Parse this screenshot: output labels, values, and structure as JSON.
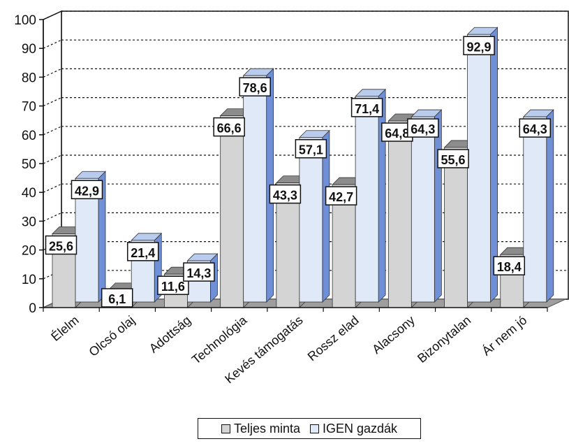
{
  "chart_data": {
    "type": "bar",
    "title": "",
    "xlabel": "",
    "ylabel": "",
    "ylim": [
      0,
      100
    ],
    "yticks": [
      0,
      10,
      20,
      30,
      40,
      50,
      60,
      70,
      80,
      90,
      100
    ],
    "grid": "dashed horizontal",
    "legend_position": "bottom-center",
    "categories": [
      "Élelm",
      "Olcsó olaj",
      "Adottság",
      "Technológia",
      "Kevés támogatás",
      "Rossz elad",
      "Alacsony",
      "Bizonytalan",
      "Ár nem jó"
    ],
    "series": [
      {
        "name": "Teljes minta",
        "values": [
          25.6,
          6.1,
          11.6,
          66.6,
          43.3,
          42.7,
          64.8,
          55.6,
          18.4
        ],
        "labels": [
          "25,6",
          "6,1",
          "11,6",
          "66,6",
          "43,3",
          "42,7",
          "64,8",
          "55,6",
          "18,4"
        ],
        "color": "#d4d4d4"
      },
      {
        "name": "IGEN gazdák",
        "values": [
          42.9,
          21.4,
          14.3,
          78.6,
          57.1,
          71.4,
          64.3,
          92.9,
          64.3
        ],
        "labels": [
          "42,9",
          "21,4",
          "14,3",
          "78,6",
          "57,1",
          "71,4",
          "64,3",
          "92,9",
          "64,3"
        ],
        "color": "#dfe9f7"
      }
    ]
  },
  "legend": {
    "teljes_label": "Teljes minta",
    "igen_label": "IGEN gazdák"
  },
  "colors": {
    "teljes_front": "#d4d4d4",
    "teljes_side": "#9a9a9a",
    "teljes_top": "#8c8c8c",
    "igen_front": "#dfe9f7",
    "igen_side": "#6f8fd6",
    "igen_top": "#b9ccee",
    "floor": "#9e9e9e"
  }
}
